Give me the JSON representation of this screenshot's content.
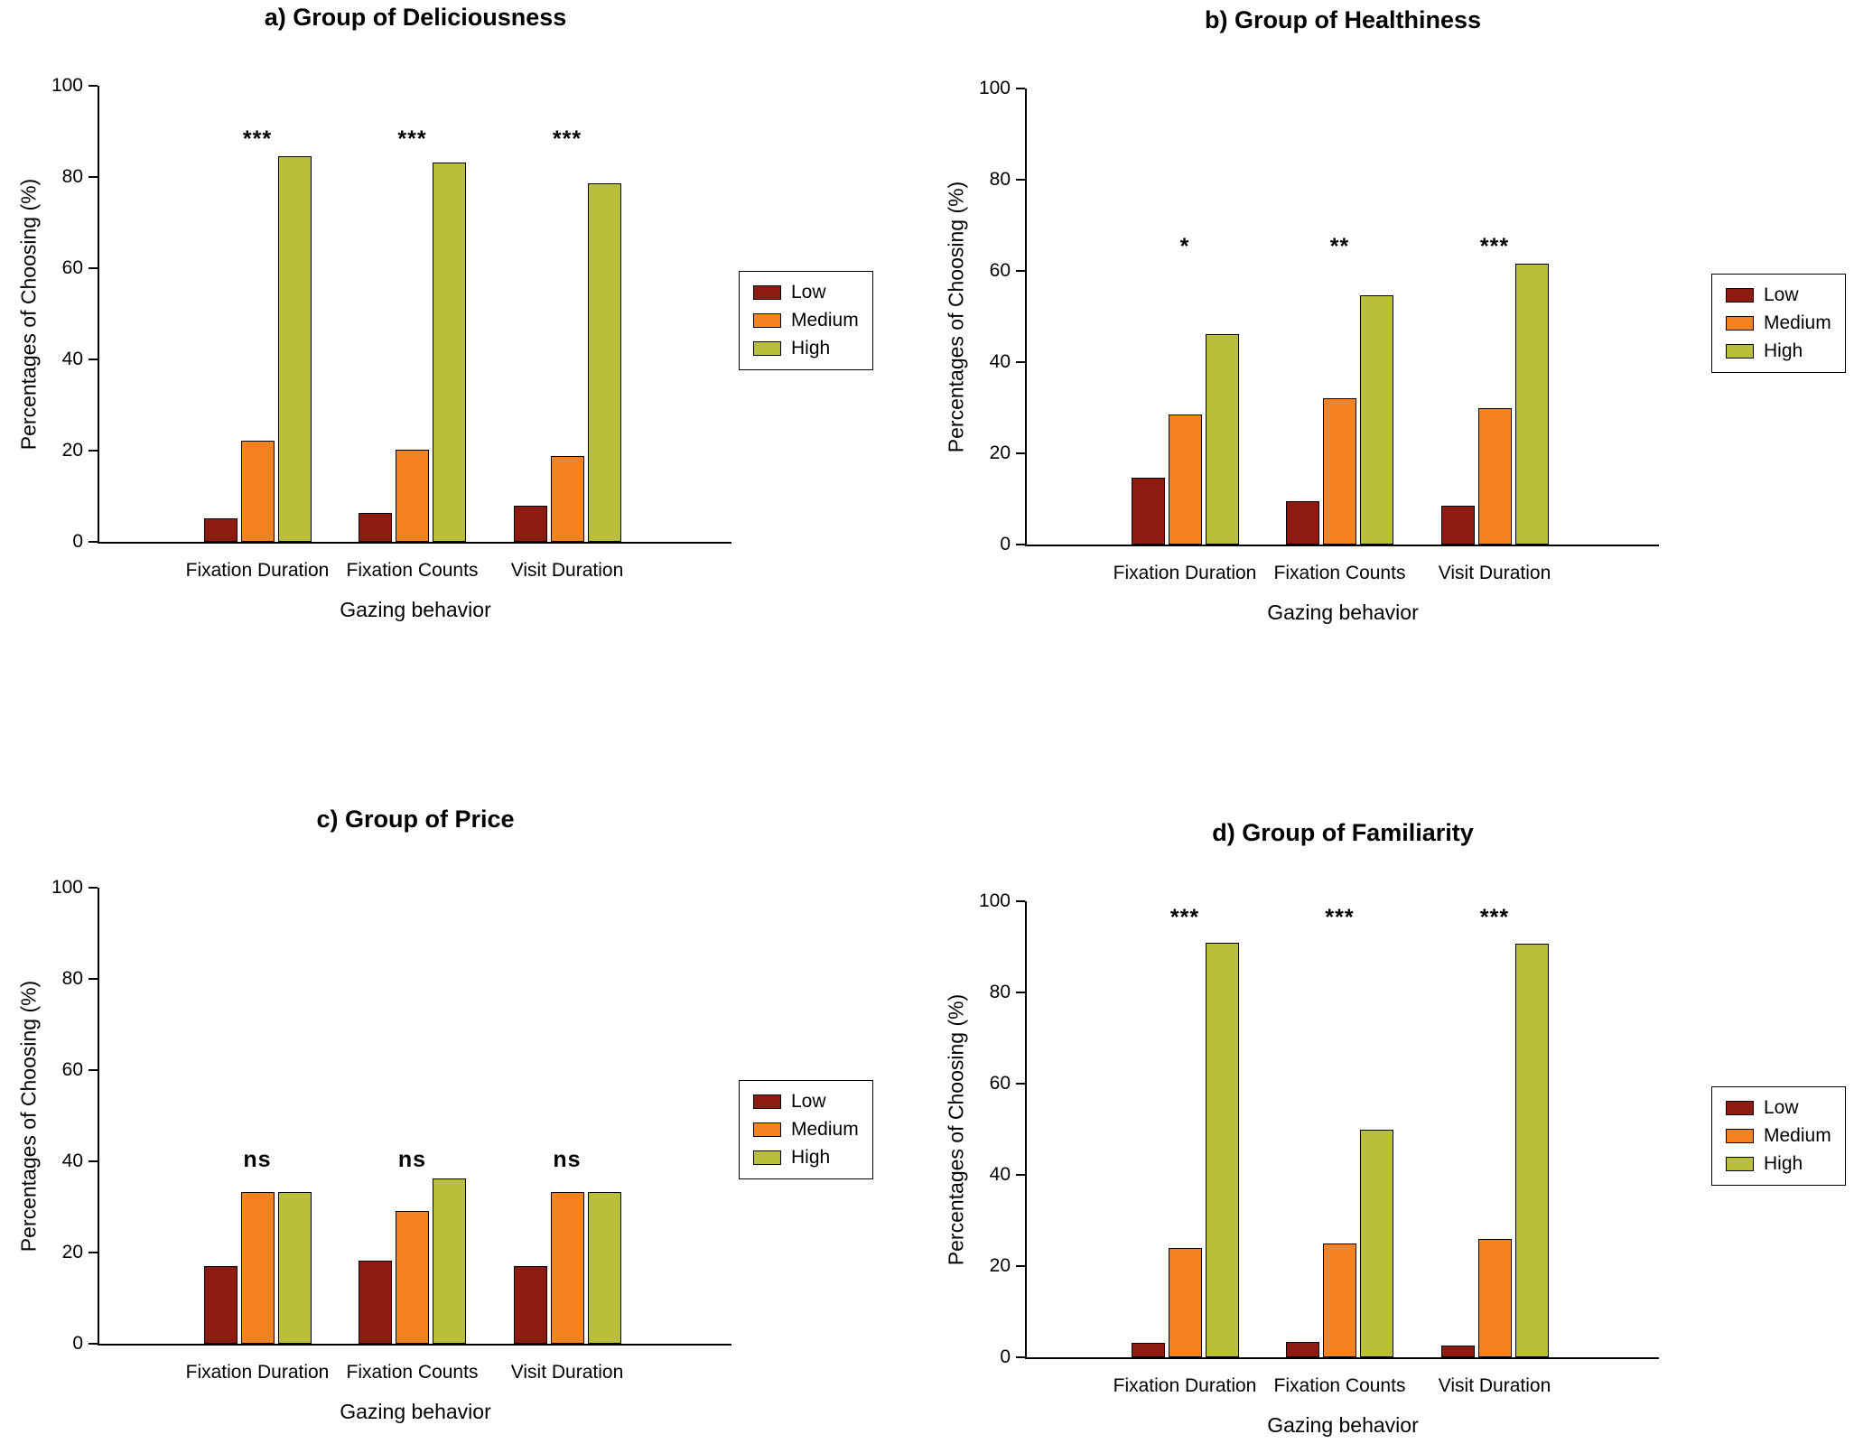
{
  "page": {
    "background": "#ffffff",
    "figure_type": "2x2 grouped bar charts"
  },
  "legend": {
    "labels": [
      "Low",
      "Medium",
      "High"
    ],
    "position": "right"
  },
  "series_colors": {
    "Low": "#8e1b12",
    "Medium": "#f58220",
    "High": "#b9bf3a"
  },
  "chart_data": [
    {
      "id": "a",
      "type": "bar",
      "title": "a) Group of Deliciousness",
      "xlabel": "Gazing behavior",
      "ylabel": "Percentages of Choosing (%)",
      "ylim": [
        0,
        100
      ],
      "yticks": [
        0,
        20,
        40,
        60,
        80,
        100
      ],
      "grid": "off",
      "legend_position": "right",
      "categories": [
        "Fixation Duration",
        "Fixation Counts",
        "Visit Duration"
      ],
      "series": [
        {
          "name": "Low",
          "color": "#8e1b12",
          "values": [
            5.2,
            6.4,
            8.0
          ]
        },
        {
          "name": "Medium",
          "color": "#f58220",
          "values": [
            22.2,
            20.1,
            18.8
          ]
        },
        {
          "name": "High",
          "color": "#b9bf3a",
          "values": [
            84.5,
            83.2,
            78.6
          ]
        }
      ],
      "significance": {
        "labels": [
          "***",
          "***",
          "***"
        ],
        "y": 88
      }
    },
    {
      "id": "b",
      "type": "bar",
      "title": "b) Group of Healthiness",
      "xlabel": "Gazing behavior",
      "ylabel": "Percentages of Choosing (%)",
      "ylim": [
        0,
        100
      ],
      "yticks": [
        0,
        20,
        40,
        60,
        80,
        100
      ],
      "grid": "off",
      "legend_position": "right",
      "categories": [
        "Fixation Duration",
        "Fixation Counts",
        "Visit Duration"
      ],
      "series": [
        {
          "name": "Low",
          "color": "#8e1b12",
          "values": [
            14.6,
            9.6,
            8.6
          ]
        },
        {
          "name": "Medium",
          "color": "#f58220",
          "values": [
            28.5,
            32.0,
            30.0
          ]
        },
        {
          "name": "High",
          "color": "#b9bf3a",
          "values": [
            46.1,
            54.7,
            61.5
          ]
        }
      ],
      "significance": {
        "labels": [
          "*",
          "**",
          "***"
        ],
        "y": 65
      }
    },
    {
      "id": "c",
      "type": "bar",
      "title": "c) Group of Price",
      "xlabel": "Gazing behavior",
      "ylabel": "Percentages of Choosing (%)",
      "ylim": [
        0,
        100
      ],
      "yticks": [
        0,
        20,
        40,
        60,
        80,
        100
      ],
      "grid": "off",
      "legend_position": "right",
      "categories": [
        "Fixation Duration",
        "Fixation Counts",
        "Visit Duration"
      ],
      "series": [
        {
          "name": "Low",
          "color": "#8e1b12",
          "values": [
            17.1,
            18.2,
            17.1
          ]
        },
        {
          "name": "Medium",
          "color": "#f58220",
          "values": [
            33.2,
            29.2,
            33.2
          ]
        },
        {
          "name": "High",
          "color": "#b9bf3a",
          "values": [
            33.2,
            36.3,
            33.2
          ]
        }
      ],
      "significance": {
        "labels": [
          "ns",
          "ns",
          "ns"
        ],
        "y": 40
      }
    },
    {
      "id": "d",
      "type": "bar",
      "title": "d) Group of Familiarity",
      "xlabel": "Gazing behavior",
      "ylabel": "Percentages of Choosing (%)",
      "ylim": [
        0,
        100
      ],
      "yticks": [
        0,
        20,
        40,
        60,
        80,
        100
      ],
      "grid": "off",
      "legend_position": "right",
      "categories": [
        "Fixation Duration",
        "Fixation Counts",
        "Visit Duration"
      ],
      "series": [
        {
          "name": "Low",
          "color": "#8e1b12",
          "values": [
            3.1,
            3.4,
            2.6
          ]
        },
        {
          "name": "Medium",
          "color": "#f58220",
          "values": [
            23.9,
            24.9,
            26.0
          ]
        },
        {
          "name": "High",
          "color": "#b9bf3a",
          "values": [
            90.9,
            49.9,
            90.6
          ]
        }
      ],
      "significance": {
        "labels": [
          "***",
          "***",
          "***"
        ],
        "y": 96
      }
    }
  ]
}
